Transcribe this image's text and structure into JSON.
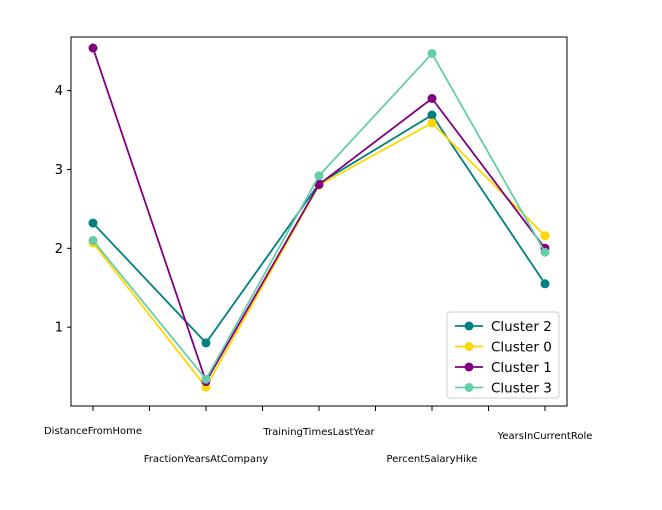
{
  "chart_data": {
    "type": "line",
    "title": "",
    "xlabel": "",
    "ylabel": "",
    "categories": [
      "DistanceFromHome",
      "FractionYearsAtCompany",
      "TrainingTimesLastYear",
      "PercentSalaryHike",
      "YearsInCurrentRole"
    ],
    "yticks": [
      1,
      2,
      3,
      4
    ],
    "ylim": [
      0.0,
      4.68
    ],
    "grid": false,
    "legend_position": "lower-right",
    "series": [
      {
        "name": "Cluster 2",
        "color": "#008080",
        "values": [
          2.32,
          0.8,
          2.82,
          3.69,
          1.55
        ]
      },
      {
        "name": "Cluster 0",
        "color": "#FFD700",
        "values": [
          2.07,
          0.24,
          2.8,
          3.59,
          2.16
        ]
      },
      {
        "name": "Cluster 1",
        "color": "#800080",
        "values": [
          4.54,
          0.31,
          2.81,
          3.9,
          2.0
        ]
      },
      {
        "name": "Cluster 3",
        "color": "#66CDAA",
        "values": [
          2.1,
          0.34,
          2.92,
          4.47,
          1.95
        ]
      }
    ]
  }
}
